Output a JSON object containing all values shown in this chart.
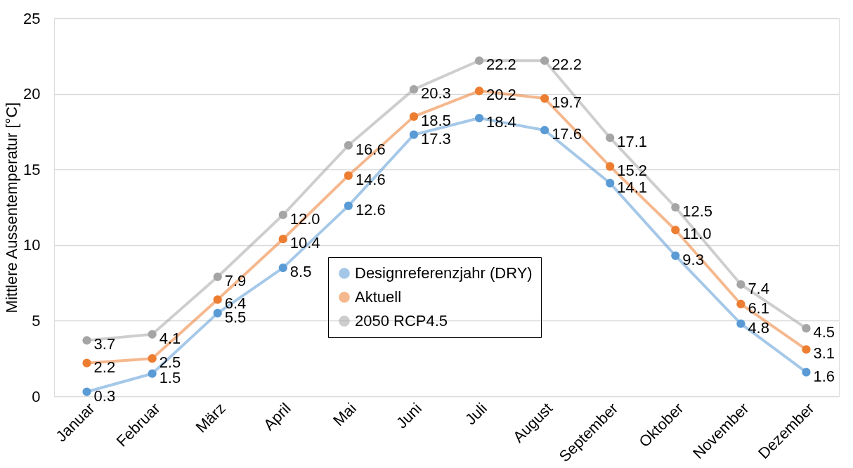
{
  "chart_data": {
    "type": "line",
    "ylabel": "Mittlere Aussentemperatur [°C]",
    "categories": [
      "Januar",
      "Februar",
      "März",
      "April",
      "Mai",
      "Juni",
      "Juli",
      "August",
      "September",
      "Oktober",
      "November",
      "Dezember"
    ],
    "series": [
      {
        "name": "Designreferenzjahr (DRY)",
        "color": "#5b9bd5",
        "values": [
          0.3,
          1.5,
          5.5,
          8.5,
          12.6,
          17.3,
          18.4,
          17.6,
          14.1,
          9.3,
          4.8,
          1.6
        ],
        "value_labels": [
          "0.3",
          "1.5",
          "5.5",
          "8.5",
          "12.6",
          "17.3",
          "18.4",
          "17.6",
          "14.1",
          "9.3",
          "4.8",
          "1.6"
        ]
      },
      {
        "name": "Aktuell",
        "color": "#ed7d31",
        "values": [
          2.2,
          2.5,
          6.4,
          10.4,
          14.6,
          18.5,
          20.2,
          19.7,
          15.2,
          11.0,
          6.1,
          3.1
        ],
        "value_labels": [
          "2.2",
          "2.5",
          "6.4",
          "10.4",
          "14.6",
          "18.5",
          "20.2",
          "19.7",
          "15.2",
          "11.0",
          "6.1",
          "3.1"
        ]
      },
      {
        "name": "2050 RCP4.5",
        "color": "#a5a5a5",
        "values": [
          3.7,
          4.1,
          7.9,
          12.0,
          16.6,
          20.3,
          22.2,
          22.2,
          17.1,
          12.5,
          7.4,
          4.5
        ],
        "value_labels": [
          "3.7",
          "4.1",
          "7.9",
          "12.0",
          "16.6",
          "20.3",
          "22.2",
          "22.2",
          "17.1",
          "12.5",
          "7.4",
          "4.5"
        ]
      }
    ],
    "ylim": [
      0,
      25
    ],
    "yticks": [
      0,
      5,
      10,
      15,
      20,
      25
    ],
    "grid": "y",
    "legend": "bottom",
    "marker": "circle",
    "line_style": "solid"
  }
}
